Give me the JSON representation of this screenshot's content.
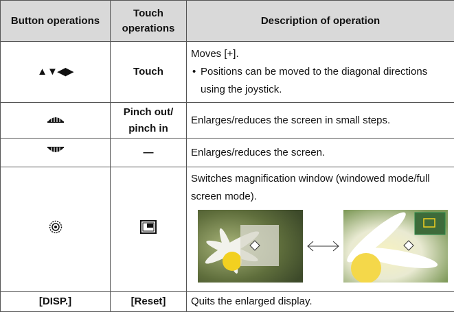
{
  "table": {
    "header": [
      "Button operations",
      "Touch operations",
      "Description of operation"
    ],
    "rows": [
      {
        "button": "▲▼◀▶",
        "touch": "Touch",
        "description": "Moves [+].",
        "note": "Positions can be moved to the diagonal directions using the joystick."
      },
      {
        "touch": "Pinch out/ pinch in",
        "description": "Enlarges/reduces the screen in small steps."
      },
      {
        "touch": "—",
        "description": "Enlarges/reduces the screen."
      },
      {
        "description": "Switches magnification window (windowed mode/full screen mode)."
      },
      {
        "button": "[DISP.]",
        "touch": "[Reset]",
        "description": "Quits the enlarged display."
      }
    ]
  }
}
